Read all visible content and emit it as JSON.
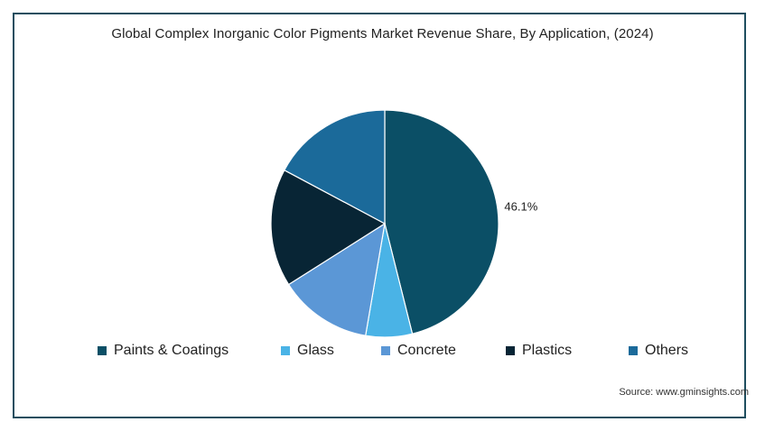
{
  "chart_data": {
    "type": "pie",
    "title": "Global Complex Inorganic Color Pigments Market Revenue Share, By Application,  (2024)",
    "categories": [
      "Paints & Coatings",
      "Glass",
      "Concrete",
      "Plastics",
      "Others"
    ],
    "values": [
      46.1,
      6.6,
      13.3,
      16.8,
      17.2
    ],
    "colors": [
      "#0b4f66",
      "#4ab3e6",
      "#5b97d6",
      "#082535",
      "#1b6a9a"
    ],
    "data_labels": [
      "46.1%",
      "",
      "",
      "",
      ""
    ],
    "start_angle_deg": 0,
    "direction": "clockwise",
    "legend_position": "bottom"
  },
  "source_text": "Source: www.gminsights.com"
}
